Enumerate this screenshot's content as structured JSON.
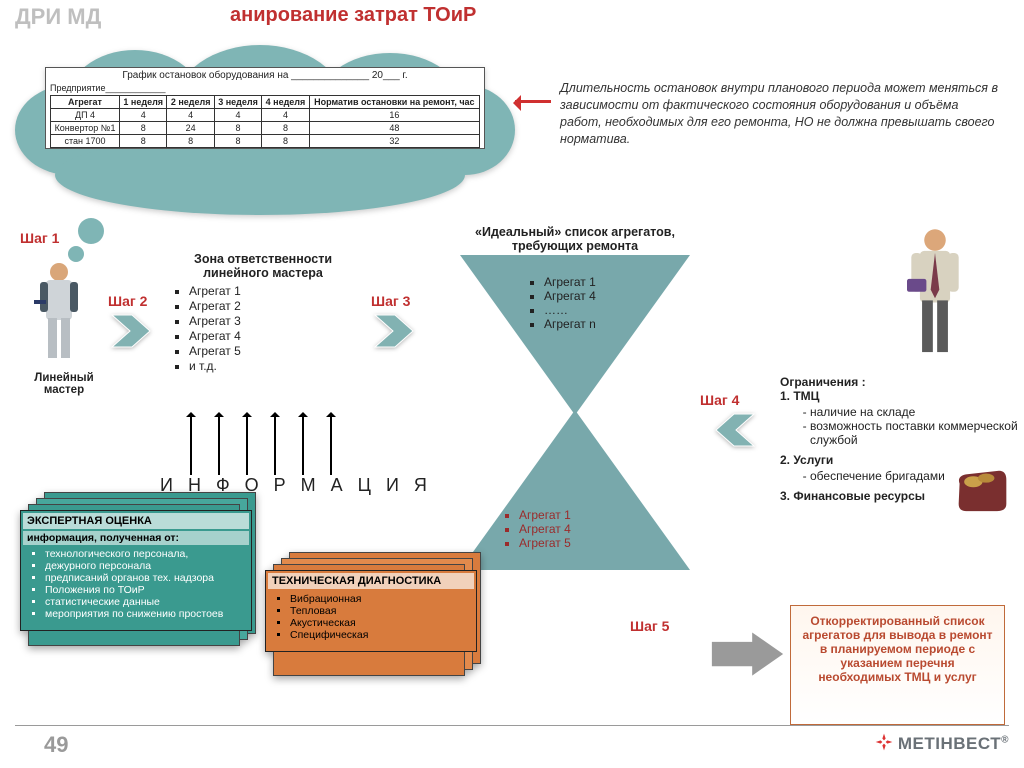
{
  "header": {
    "left": "ДРИ МД",
    "title": "анирование затрат ТОиР"
  },
  "note": "Длительность остановок внутри планового периода может меняться в зависимости от фактического состояния оборудования и объёма работ, необходимых для его ремонта, НО не должна превышать своего норматива.",
  "cloud": {
    "title": "График остановок оборудования  на ______________ 20___ г.",
    "subtitle": "Предприятие____________",
    "cols": [
      "Агрегат",
      "1 неделя",
      "2 неделя",
      "3 неделя",
      "4 неделя",
      "Норматив остановки на ремонт, час"
    ],
    "rows": [
      [
        "ДП 4",
        "4",
        "4",
        "4",
        "4",
        "16"
      ],
      [
        "Конвертор №1",
        "8",
        "24",
        "8",
        "8",
        "48"
      ],
      [
        "стан 1700",
        "8",
        "8",
        "8",
        "8",
        "32"
      ]
    ],
    "color": "#7fb5b5"
  },
  "steps": {
    "s1": "Шаг 1",
    "s2": "Шаг 2",
    "s3": "Шаг 3",
    "s4": "Шаг 4",
    "s5": "Шаг 5"
  },
  "worker_label": "Линейный мастер",
  "zone": {
    "title": "Зона ответственности линейного мастера",
    "items": [
      "Агрегат 1",
      "Агрегат 2",
      "Агрегат 3",
      "Агрегат 4",
      "Агрегат 5",
      "и т.д."
    ]
  },
  "hourglass": {
    "title": "«Идеальный» список агрегатов, требующих ремонта",
    "top_items": [
      "Агрегат 1",
      "Агрегат 4",
      "……",
      "Агрегат n"
    ],
    "bottom_items": [
      "Агрегат 1",
      "Агрегат 4",
      "Агрегат 5"
    ],
    "color": "#78a8ab"
  },
  "constraints": {
    "title": "Ограничения :",
    "l1": "1. ТМЦ",
    "l1a": "наличие на складе",
    "l1b": "возможность поставки коммерческой службой",
    "l2": "2. Услуги",
    "l2a": "обеспечение бригадами",
    "l3": "3. Финансовые ресурсы"
  },
  "info_word": "И Н Ф О Р М А Ц И Я",
  "stack1": {
    "title": "ЭКСПЕРТНАЯ ОЦЕНКА",
    "subtitle": "информация, полученная от:",
    "items": [
      "технологического персонала,",
      "дежурного персонала",
      "предписаний органов тех. надзора",
      "Положения по ТОиР",
      "статистические данные",
      "мероприятия по снижению простоев"
    ],
    "color": "#3a9a8f"
  },
  "stack2": {
    "title": "ТЕХНИЧЕСКАЯ ДИАГНОСТИКА",
    "items": [
      "Вибрационная",
      "Тепловая",
      "Акустическая",
      "Специфическая"
    ],
    "color": "#d87b3d"
  },
  "finalbox": "Откорректированный список агрегатов для вывода в ремонт в планируемом периоде с указанием перечня необходимых ТМЦ и услуг",
  "page": "49",
  "brand": "МЕТІНВЕСТ",
  "chev_color": "#82b2b2",
  "arrow_big_color": "#9a9a9a"
}
